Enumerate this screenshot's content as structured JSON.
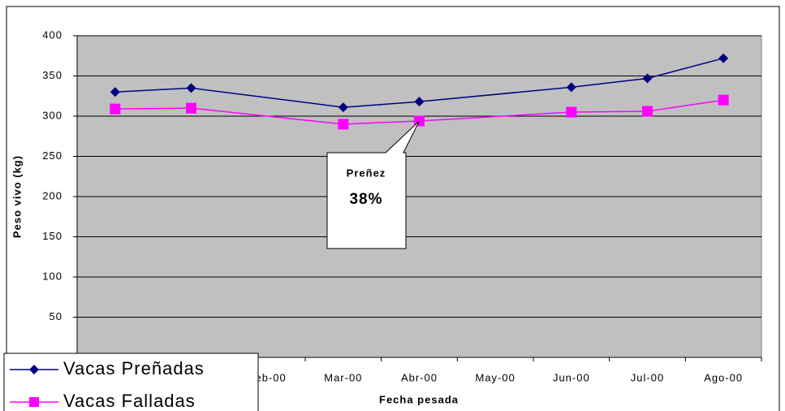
{
  "chart_data": {
    "type": "line",
    "categories": [
      null,
      null,
      "Feb-00",
      "Mar-00",
      "Abr-00",
      "May-00",
      "Jun-00",
      "Jul-00",
      "Ago-00"
    ],
    "series": [
      {
        "name": "Vacas Preñadas",
        "color": "#000080",
        "marker": "diamond",
        "values": [
          330,
          335,
          null,
          311,
          318,
          null,
          336,
          347,
          372
        ]
      },
      {
        "name": "Vacas Falladas",
        "color": "#ff00ff",
        "marker": "square",
        "values": [
          309,
          310,
          null,
          290,
          294,
          null,
          305,
          306,
          320
        ]
      }
    ],
    "connect_gaps": true,
    "ylim": [
      0,
      400
    ],
    "yticks": [
      0,
      50,
      100,
      150,
      200,
      250,
      300,
      350,
      400
    ],
    "grid": true,
    "plot_background": "#c0c0c0",
    "y_label": "Peso vivo (kg)",
    "x_label": "Fecha pesada",
    "annotation": {
      "title": "Preñez",
      "text": "38%",
      "category_index": 4,
      "series_index": 1
    },
    "legend": "bottom-left"
  }
}
